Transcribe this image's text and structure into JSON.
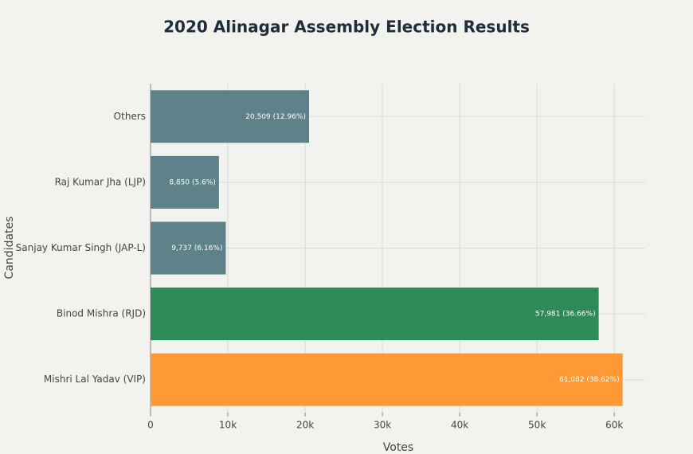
{
  "chart_data": {
    "type": "bar",
    "orientation": "horizontal",
    "title": "2020 Alinagar Assembly Election Results",
    "x_label": "Votes",
    "y_label": "Candidates",
    "categories": [
      "Others",
      "Raj Kumar Jha (LJP)",
      "Sanjay Kumar Singh (JAP-L)",
      "Binod Mishra (RJD)",
      "Mishri Lal Yadav (VIP)"
    ],
    "values": [
      20509,
      8850,
      9737,
      57981,
      61082
    ],
    "value_labels": [
      "20,509 (12.96%)",
      "8,850 (5.6%)",
      "9,737 (6.16%)",
      "57,981 (36.66%)",
      "61,082 (38.62%)"
    ],
    "colors": [
      "#5e8289",
      "#5e8289",
      "#5e8289",
      "#2e8b57",
      "#ff9933"
    ],
    "xlim": [
      0,
      64000
    ],
    "xticks": [
      0,
      {
        "value": 10000,
        "label": "10k"
      },
      {
        "value": 20000,
        "label": "20k"
      },
      {
        "value": 30000,
        "label": "30k"
      },
      {
        "value": 40000,
        "label": "40k"
      },
      {
        "value": 50000,
        "label": "50k"
      },
      {
        "value": 60000,
        "label": "60k"
      }
    ],
    "grid": true
  }
}
